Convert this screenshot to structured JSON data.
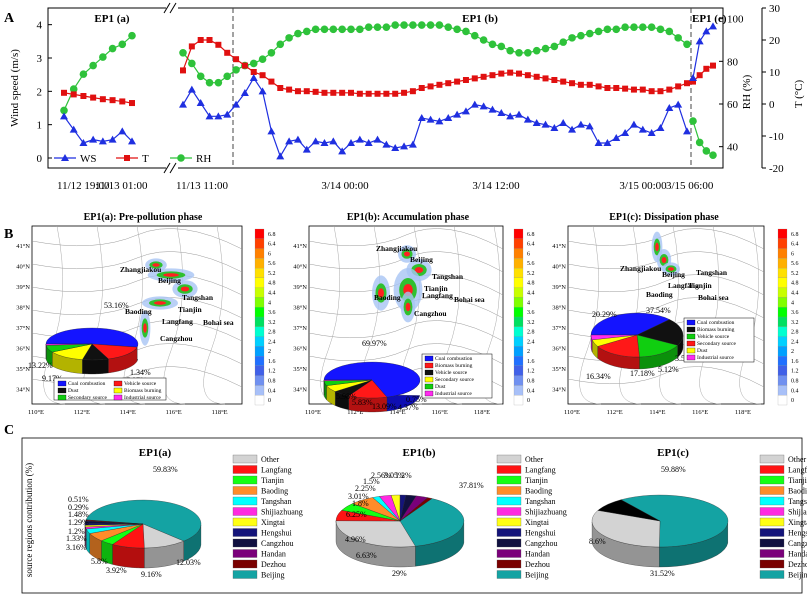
{
  "panel_labels": {
    "a": "A",
    "b": "B",
    "c": "C"
  },
  "chart_data": [
    {
      "type": "line",
      "id": "panelA",
      "phases": [
        {
          "label": "EP1 (a)",
          "x_ticks": [
            "11/12 19:00",
            "11/13 01:00"
          ]
        },
        {
          "label": "EP1 (b)",
          "x_ticks": [
            "11/13 11:00",
            "3/14 00:00",
            "3/14 12:00",
            "3/15 00:00"
          ]
        },
        {
          "label": "EP1 (c)",
          "x_ticks": [
            "3/15 06:00"
          ]
        }
      ],
      "ylabel": "Wind speed (m/s)",
      "y2label": "RH (%)",
      "y3label": "T (°C)",
      "ylim": [
        -0.3,
        4.5
      ],
      "y2lim": [
        30,
        105
      ],
      "y3lim": [
        -20,
        30
      ],
      "yticks": [
        0,
        1,
        2,
        3,
        4
      ],
      "y2ticks": [
        40,
        60,
        80,
        100
      ],
      "y3ticks": [
        -20,
        -10,
        0,
        10,
        20,
        30
      ],
      "legend": [
        "WS",
        "T",
        "RH"
      ],
      "colors": {
        "WS": "#1f2fe0",
        "T": "#e01010",
        "RH": "#2ec23a"
      },
      "seg_a": {
        "ws": [
          1.25,
          0.85,
          0.45,
          0.55,
          0.5,
          0.55,
          0.8,
          0.5
        ],
        "t": [
          3.5,
          3.0,
          2.5,
          2.0,
          1.5,
          1.2,
          0.8,
          0.3
        ],
        "rh": [
          57,
          67,
          74,
          78,
          82,
          86,
          88,
          92
        ]
      },
      "seg_b": {
        "ws": [
          1.6,
          2.05,
          1.65,
          1.25,
          1.25,
          1.3,
          1.6,
          1.95,
          2.4,
          2.0,
          0.8,
          0.05,
          0.5,
          0.55,
          0.25,
          0.5,
          0.45,
          0.5,
          0.2,
          0.45,
          0.55,
          0.45,
          0.55,
          0.4,
          0.3,
          0.35,
          0.4,
          1.2,
          1.15,
          1.1,
          1.2,
          1.3,
          1.4,
          1.6,
          1.55,
          1.45,
          1.35,
          1.25,
          1.3,
          1.15,
          1.05,
          1.0,
          0.9,
          1.05,
          0.85,
          1.0,
          0.95,
          0.45,
          0.45,
          0.6,
          0.75,
          1.0,
          0.85,
          0.75,
          0.9,
          1.5,
          1.6,
          0.8
        ],
        "t": [
          10.5,
          18,
          20,
          20,
          18.5,
          16,
          14,
          12,
          10,
          9,
          7,
          5,
          4.5,
          4,
          4,
          3.8,
          3.5,
          3.5,
          3.5,
          3.5,
          3.2,
          3.2,
          3.2,
          3.2,
          3.2,
          3.5,
          4,
          5,
          5.5,
          6,
          6.5,
          7,
          7.5,
          8,
          8.5,
          9,
          9.5,
          9.8,
          9.5,
          9,
          8.5,
          8,
          7.5,
          7,
          6.5,
          6,
          6,
          5.5,
          5,
          5,
          4.8,
          4.5,
          4.5,
          4,
          4,
          4.5,
          5.5,
          6.5
        ],
        "rh": [
          84,
          79,
          73,
          70,
          70,
          73,
          76,
          78,
          79,
          81,
          84,
          88,
          91,
          93,
          94,
          95,
          95,
          95,
          95,
          95,
          95,
          96,
          96,
          96,
          97,
          97,
          97,
          97,
          97,
          97,
          96,
          95,
          94,
          92,
          90,
          88,
          87,
          85,
          84,
          84,
          85,
          86,
          87,
          89,
          91,
          92,
          93,
          94,
          95,
          95,
          96,
          96,
          96,
          96,
          95,
          94,
          91,
          88
        ]
      },
      "seg_c": {
        "ws": [
          2.4,
          3.5,
          3.8,
          3.95
        ],
        "t": [
          7,
          9,
          11,
          12
        ],
        "rh": [
          52,
          42,
          38,
          36
        ]
      }
    },
    {
      "type": "pie",
      "id": "b1",
      "title": "EP1(a): Pre-pollution phase",
      "values": [
        53.16,
        16.04,
        9.17,
        13.22,
        7.07,
        1.34
      ],
      "labels": [
        "53.16%",
        "16.04%",
        "9.17%",
        "13.22%",
        "7.07%",
        "1.34%"
      ],
      "colors": [
        "#1414ff",
        "#ff1818",
        "#111111",
        "#ffff00",
        "#10ce10",
        "#ff2af0"
      ],
      "legend": [
        "Coal combustion",
        "Vehicle source",
        "Dust",
        "Biomass burning",
        "Secondary source",
        "Industrial source"
      ]
    },
    {
      "type": "pie",
      "id": "b2",
      "title": "EP1(b): Accumulation phase",
      "values": [
        69.97,
        13.09,
        5.83,
        5.98,
        4.37,
        0.75
      ],
      "labels": [
        "69.97%",
        "13.09%",
        "5.83%",
        "5.98%",
        "4.37%",
        "0.75%"
      ],
      "colors": [
        "#1414ff",
        "#ff1818",
        "#111111",
        "#ffff00",
        "#10ce10",
        "#ff2af0"
      ],
      "legend": [
        "Coal combustion",
        "Biomass burning",
        "Vehicle source",
        "Secondary source",
        "Dust",
        "Industrial source"
      ]
    },
    {
      "type": "pie",
      "id": "b3",
      "title": "EP1(c): Dissipation phase",
      "values": [
        37.54,
        20.29,
        16.34,
        17.18,
        5.12,
        3.56
      ],
      "labels": [
        "37.54%",
        "20.29%",
        "16.34%",
        "17.18%",
        "5.12%",
        "3.56%"
      ],
      "colors": [
        "#1414ff",
        "#111111",
        "#10ce10",
        "#ff1818",
        "#ffff00",
        "#ff2af0"
      ],
      "legend": [
        "Coal combustion",
        "Biomass burning",
        "Vehicle source",
        "Secondary source",
        "Dust",
        "Industrial source"
      ]
    },
    {
      "type": "pie",
      "id": "c1",
      "title": "EP1(a)",
      "ylabel": "source regions contribution (%)",
      "values": [
        59.83,
        12.03,
        9.16,
        3.92,
        5.8,
        3.16,
        1.33,
        1.2,
        1.29,
        1.48,
        0.29,
        0.51
      ],
      "labels": [
        "59.83%",
        "12.03%",
        "9.16%",
        "3.92%",
        "5.8%",
        "3.16%",
        "1.33%",
        "1.2%",
        "1.29%",
        "1.48%",
        "0.29%",
        "0.51%"
      ],
      "colors": [
        "#14a3a3",
        "#d3d3d3",
        "#ff1414",
        "#14ff14",
        "#ff8c2a",
        "#00ffff",
        "#ff2ae0",
        "#ffff14",
        "#14147a",
        "#101040",
        "#7a007a",
        "#7a0000"
      ]
    },
    {
      "type": "pie",
      "id": "c2",
      "title": "EP1(b)",
      "values": [
        37.81,
        29,
        6.63,
        4.96,
        6.25,
        1.8,
        3.01,
        2.25,
        1.5,
        2.56,
        3.05,
        1.2
      ],
      "labels": [
        "37.81%",
        "29%",
        "6.63%",
        "4.96%",
        "6.25%",
        "1.8%",
        "3.01%",
        "2.25%",
        "1.5%",
        "2.56%",
        "3.05%",
        "1.2%"
      ],
      "colors": [
        "#14a3a3",
        "#d3d3d3",
        "#ff1414",
        "#14ff14",
        "#ff8c2a",
        "#00ffff",
        "#ff2ae0",
        "#ffff14",
        "#14147a",
        "#101040",
        "#7a007a",
        "#7a0000"
      ]
    },
    {
      "type": "pie",
      "id": "c3",
      "title": "EP1(c)",
      "values": [
        59.88,
        31.52,
        8.6
      ],
      "labels": [
        "59.88%",
        "31.52%",
        "8.6%"
      ],
      "colors": [
        "#14a3a3",
        "#d3d3d3",
        "#000000"
      ]
    }
  ],
  "maps": {
    "b1": {
      "cities": [
        "Zhangjiakou",
        "Beijing",
        "Tangshan",
        "Tianjin",
        "Baoding",
        "Langfang",
        "Cangzhou",
        "Bohai sea"
      ]
    },
    "b2": {
      "cities": [
        "Zhangjiakou",
        "Beijing",
        "Tangshan",
        "Tianjin",
        "Baoding",
        "Langfang",
        "Cangzhou",
        "Bohai sea"
      ]
    },
    "b3": {
      "cities": [
        "Zhangjiakou",
        "Beijing",
        "Tangshan",
        "Tianjin",
        "Langfang",
        "Baoding",
        "Bohai sea"
      ]
    },
    "lat_ticks": [
      "41°N",
      "40°N",
      "39°N",
      "38°N",
      "37°N",
      "36°N",
      "35°N",
      "34°N"
    ],
    "lon_ticks": [
      "110°E",
      "112°E",
      "114°E",
      "116°E",
      "118°E"
    ],
    "colorbar_ticks": [
      "6.8",
      "6.4",
      "6",
      "5.6",
      "5.2",
      "4.8",
      "4.4",
      "4",
      "3.6",
      "3.2",
      "2.8",
      "2.4",
      "2",
      "1.6",
      "1.2",
      "0.8",
      "0.4",
      "0"
    ]
  },
  "region_legend": [
    "Other",
    "Langfang",
    "Tianjin",
    "Baoding",
    "Tangshan",
    "Shijiazhuang",
    "Xingtai",
    "Hengshui",
    "Cangzhou",
    "Handan",
    "Dezhou",
    "Beijing"
  ],
  "region_colors": [
    "#d3d3d3",
    "#ff1414",
    "#14ff14",
    "#ff8c2a",
    "#00ffff",
    "#ff2ae0",
    "#ffff14",
    "#14147a",
    "#101040",
    "#7a007a",
    "#7a0000",
    "#14a3a3"
  ]
}
